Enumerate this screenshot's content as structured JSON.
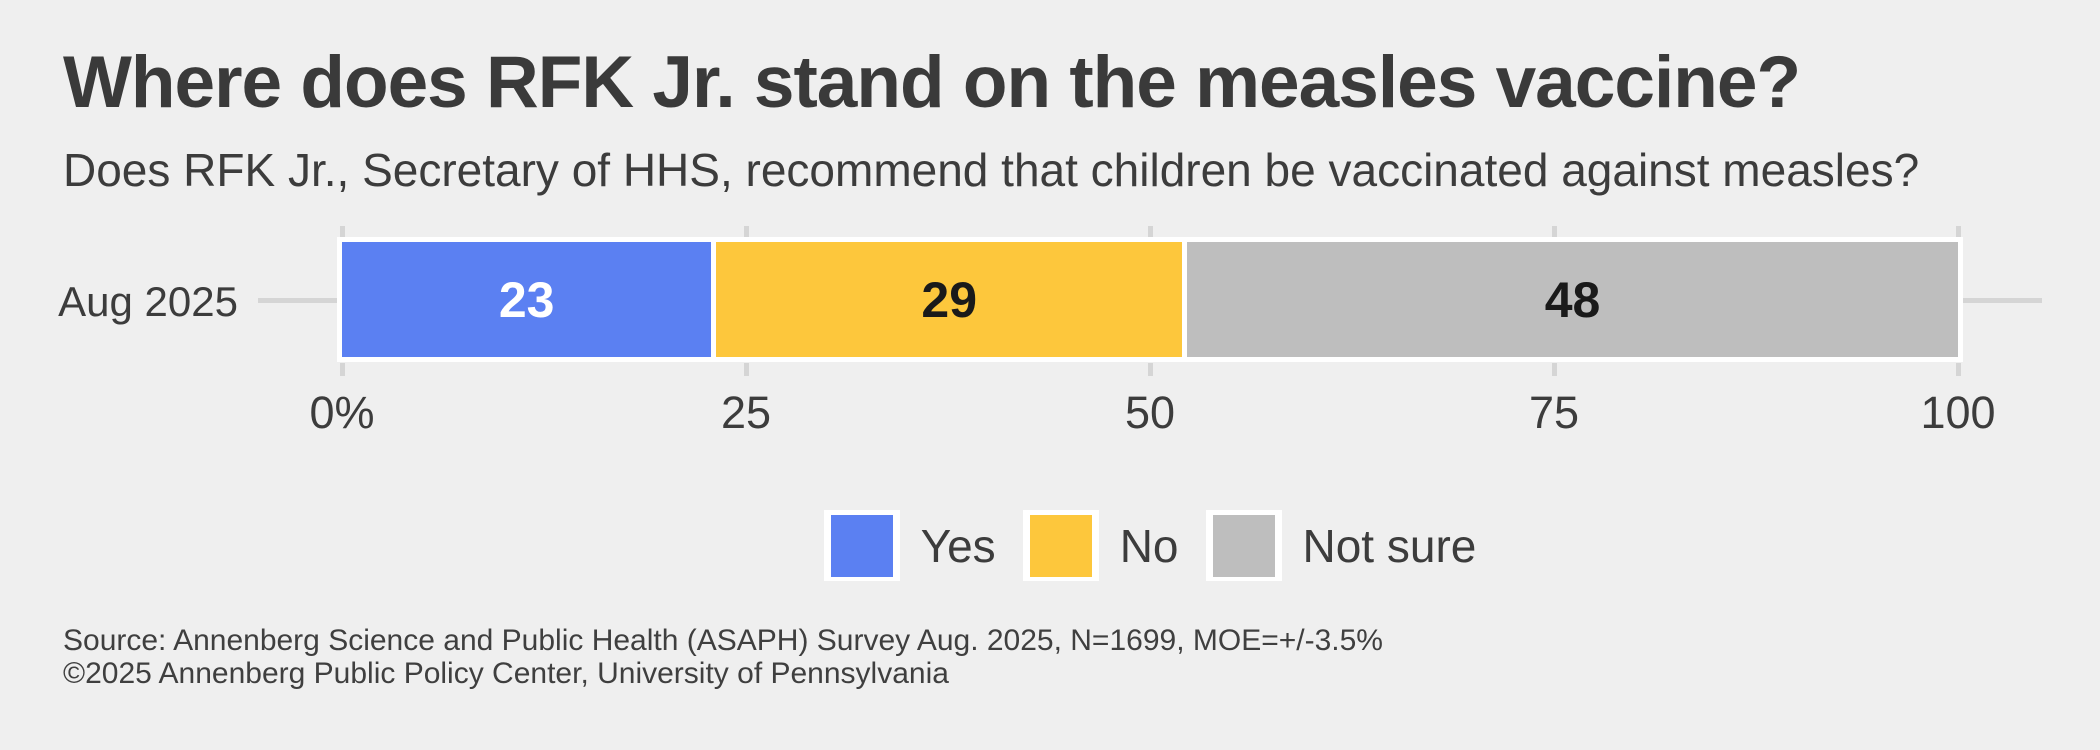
{
  "header": {
    "title": "Where does RFK Jr. stand on the measles vaccine?",
    "subtitle": "Does RFK Jr., Secretary of HHS, recommend that children be vaccinated against measles?"
  },
  "chart_data": {
    "type": "bar",
    "orientation": "horizontal-stacked",
    "categories": [
      "Aug 2025"
    ],
    "series": [
      {
        "name": "Yes",
        "values": [
          23
        ],
        "color": "#5B80F2",
        "label_color": "#FFFFFF"
      },
      {
        "name": "No",
        "values": [
          29
        ],
        "color": "#FDC73C",
        "label_color": "#1A1A1A"
      },
      {
        "name": "Not sure",
        "values": [
          48
        ],
        "color": "#BEBEBE",
        "label_color": "#1A1A1A"
      }
    ],
    "x_ticks": [
      {
        "pos": 0,
        "label": "0%"
      },
      {
        "pos": 25,
        "label": "25"
      },
      {
        "pos": 50,
        "label": "50"
      },
      {
        "pos": 75,
        "label": "75"
      },
      {
        "pos": 100,
        "label": "100"
      }
    ],
    "xlim": [
      0,
      100
    ],
    "grid": false,
    "legend_position": "bottom-center",
    "bar_border_color": "#FFFFFF"
  },
  "footer": {
    "source_line1": "Source: Annenberg Science and Public Health (ASAPH) Survey Aug. 2025, N=1699, MOE=+/-3.5%",
    "source_line2": "©2025 Annenberg Public Policy Center, University of Pennsylvania"
  },
  "colors": {
    "background": "#EFEFEF",
    "text": "#3C3C3C",
    "tick": "#D5D5D5"
  }
}
